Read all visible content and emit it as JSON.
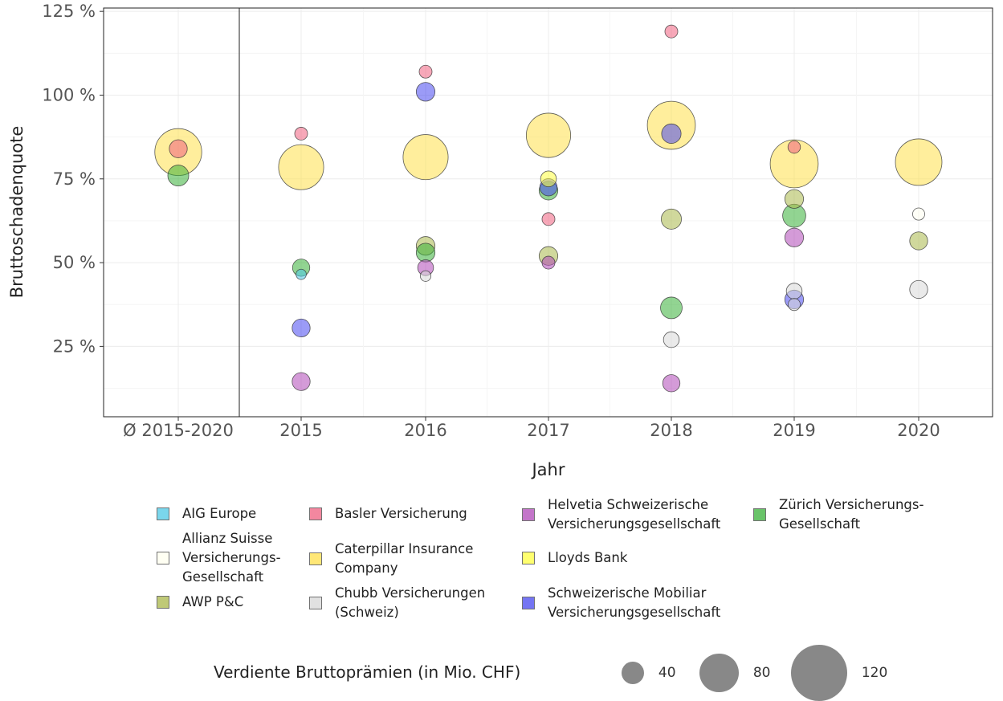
{
  "chart_data": {
    "type": "scatter",
    "title": "",
    "xlabel": "Jahr",
    "ylabel": "Bruttoschadenquote",
    "categories": [
      "Ø 2015-2020",
      "2015",
      "2016",
      "2017",
      "2018",
      "2019",
      "2020"
    ],
    "y_ticks": [
      "25 %",
      "50 %",
      "75 %",
      "100 %",
      "125 %"
    ],
    "ylim": [
      4,
      126
    ],
    "grid": true,
    "size_variable": "Verdiente Bruttoprämien (in Mio. CHF)",
    "series": [
      {
        "name": "AIG Europe",
        "color": "#4ec9e6",
        "points": [
          {
            "x": "2015",
            "y": 46.5,
            "size": 15
          }
        ]
      },
      {
        "name": "Allianz Suisse Versicherungs-Gesellschaft",
        "color": "#fffff0",
        "points": [
          {
            "x": "2020",
            "y": 64.5,
            "size": 20
          }
        ]
      },
      {
        "name": "AWP P&C",
        "color": "#aab84a",
        "points": [
          {
            "x": "2016",
            "y": 55.0,
            "size": 38
          },
          {
            "x": "2017",
            "y": 52.0,
            "size": 38
          },
          {
            "x": "2018",
            "y": 63.0,
            "size": 42
          },
          {
            "x": "2019",
            "y": 69.0,
            "size": 38
          },
          {
            "x": "2020",
            "y": 56.5,
            "size": 36
          }
        ]
      },
      {
        "name": "Basler Versicherung",
        "color": "#f06080",
        "points": [
          {
            "x": "Ø 2015-2020",
            "y": 84.0,
            "size": 36
          },
          {
            "x": "2015",
            "y": 88.5,
            "size": 22
          },
          {
            "x": "2016",
            "y": 107.0,
            "size": 22
          },
          {
            "x": "2017",
            "y": 63.0,
            "size": 22
          },
          {
            "x": "2018",
            "y": 119.0,
            "size": 22
          },
          {
            "x": "2019",
            "y": 84.5,
            "size": 21
          }
        ]
      },
      {
        "name": "Caterpillar Insurance Company",
        "color": "#ffe04a",
        "points": [
          {
            "x": "Ø 2015-2020",
            "y": 83.0,
            "size": 115
          },
          {
            "x": "2015",
            "y": 78.5,
            "size": 110
          },
          {
            "x": "2016",
            "y": 81.5,
            "size": 110
          },
          {
            "x": "2017",
            "y": 88.0,
            "size": 108
          },
          {
            "x": "2018",
            "y": 91.0,
            "size": 118
          },
          {
            "x": "2019",
            "y": 79.5,
            "size": 118
          },
          {
            "x": "2020",
            "y": 80.0,
            "size": 114
          }
        ]
      },
      {
        "name": "Chubb Versicherungen (Schweiz)",
        "color": "#d8d8d8",
        "points": [
          {
            "x": "2016",
            "y": 46.0,
            "size": 16
          },
          {
            "x": "2018",
            "y": 27.0,
            "size": 30
          },
          {
            "x": "2019",
            "y": 41.5,
            "size": 30
          },
          {
            "x": "2019",
            "y": 37.5,
            "size": 20
          },
          {
            "x": "2020",
            "y": 42.0,
            "size": 36
          }
        ]
      },
      {
        "name": "Helvetia Schweizerische Versicherungsgesellschaft",
        "color": "#b048b8",
        "points": [
          {
            "x": "2015",
            "y": 14.5,
            "size": 36
          },
          {
            "x": "2016",
            "y": 48.5,
            "size": 30
          },
          {
            "x": "2017",
            "y": 50.0,
            "size": 22
          },
          {
            "x": "2018",
            "y": 14.0,
            "size": 34
          },
          {
            "x": "2019",
            "y": 57.5,
            "size": 38
          }
        ]
      },
      {
        "name": "Lloyds Bank",
        "color": "#ffff40",
        "points": [
          {
            "x": "2017",
            "y": 75.0,
            "size": 30
          }
        ]
      },
      {
        "name": "Schweizerische Mobiliar Versicherungsgesellschaft",
        "color": "#4848f0",
        "points": [
          {
            "x": "2015",
            "y": 30.5,
            "size": 36
          },
          {
            "x": "2016",
            "y": 101.0,
            "size": 38
          },
          {
            "x": "2017",
            "y": 72.5,
            "size": 34
          },
          {
            "x": "2018",
            "y": 88.5,
            "size": 40
          },
          {
            "x": "2019",
            "y": 39.0,
            "size": 38
          }
        ]
      },
      {
        "name": "Zürich Versicherungs-Gesellschaft",
        "color": "#38b038",
        "points": [
          {
            "x": "Ø 2015-2020",
            "y": 76.0,
            "size": 44
          },
          {
            "x": "2015",
            "y": 48.5,
            "size": 34
          },
          {
            "x": "2016",
            "y": 53.0,
            "size": 38
          },
          {
            "x": "2017",
            "y": 71.5,
            "size": 38
          },
          {
            "x": "2018",
            "y": 36.5,
            "size": 46
          },
          {
            "x": "2019",
            "y": 64.0,
            "size": 50
          }
        ]
      }
    ],
    "legend_position": "bottom",
    "size_legend": {
      "title": "Verdiente Bruttoprämien (in Mio. CHF)",
      "values": [
        40,
        80,
        120
      ],
      "labels": [
        "40",
        "80",
        "120"
      ]
    }
  }
}
